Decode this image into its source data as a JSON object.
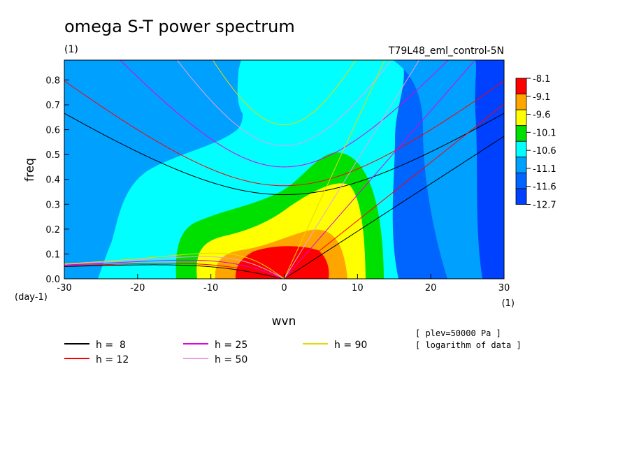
{
  "chart_data": {
    "type": "heatmap",
    "title": "omega S-T power spectrum",
    "units_label": "(1)",
    "run_label": "T79L48_eml_control-5N",
    "xlabel": "wvn",
    "ylabel": "freq",
    "x_unit": "(1)",
    "y_unit": "(day-1)",
    "xlim": [
      -30,
      30
    ],
    "ylim": [
      0,
      0.88
    ],
    "x_ticks": [
      -30,
      -20,
      -10,
      0,
      10,
      20,
      30
    ],
    "x_tick_labels": [
      "-30",
      "-20",
      "-10",
      "0",
      "10",
      "20",
      "30"
    ],
    "y_ticks": [
      0.0,
      0.1,
      0.2,
      0.3,
      0.4,
      0.5,
      0.6,
      0.7,
      0.8
    ],
    "y_tick_labels": [
      "0.0",
      "0.1",
      "0.2",
      "0.3",
      "0.4",
      "0.5",
      "0.6",
      "0.7",
      "0.8"
    ],
    "colorbar": {
      "labels": [
        "-8.1",
        "-9.1",
        "-9.6",
        "-10.1",
        "-10.6",
        "-11.1",
        "-11.6",
        "-12.7"
      ],
      "colors": [
        "#ff0000",
        "#ffa500",
        "#ffff00",
        "#00e000",
        "#00ffff",
        "#00a0ff",
        "#0064ff",
        "#0040ff"
      ]
    },
    "contour_colors": {
      "green": "#00e000",
      "yellow": "#ffff00",
      "orange": "#ffa500",
      "red": "#ff0000",
      "cyan": "#00ffff",
      "light_blue": "#00a0ff",
      "mid_blue": "#0064ff",
      "dark_blue": "#0040ff"
    },
    "dispersion_curves": [
      {
        "label": "h =  8",
        "h": 8,
        "color": "#000000"
      },
      {
        "label": "h = 12",
        "h": 12,
        "color": "#ff0000"
      },
      {
        "label": "h = 25",
        "h": 25,
        "color": "#e000e0"
      },
      {
        "label": "h = 50",
        "h": 50,
        "color": "#e8a0e8"
      },
      {
        "label": "h = 90",
        "h": 90,
        "color": "#e8d800"
      }
    ],
    "notes": [
      "[ plev=50000 Pa ]",
      "[ logarithm of data ]"
    ]
  }
}
